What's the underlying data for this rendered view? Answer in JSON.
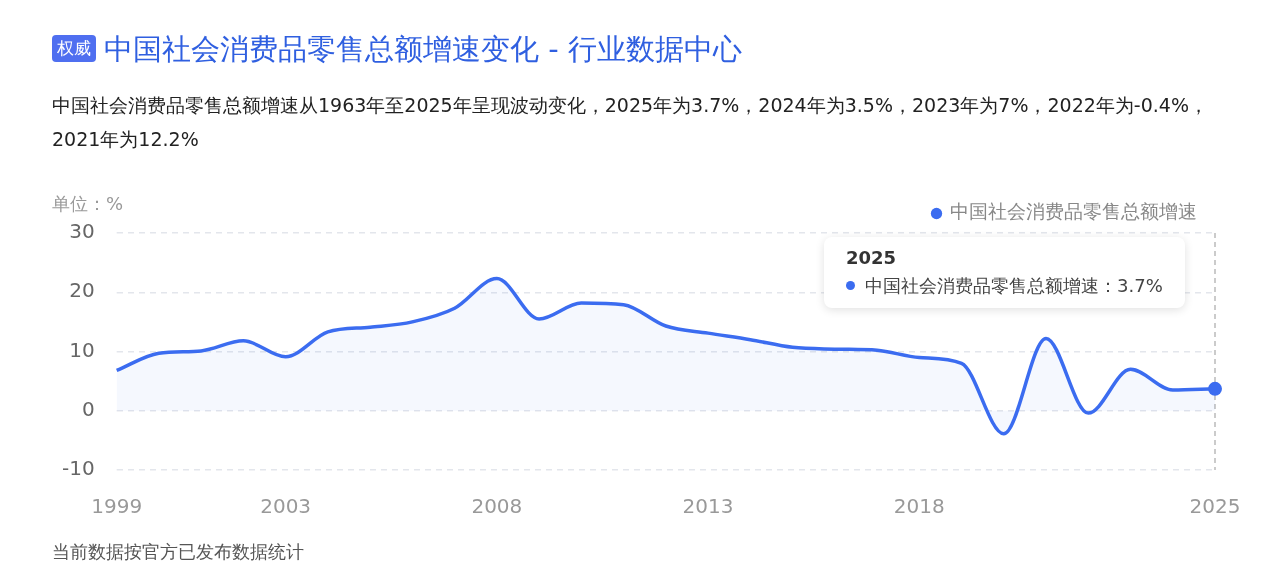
{
  "chart_data": {
    "type": "area",
    "title": "中国社会消费品零售总额增速变化 - 行业数据中心",
    "subtitle": "中国社会消费品零售总额增速从1963年至2025年呈现波动变化，2025年为3.7%，2024年为3.5%，2023年为7%，2022年为-0.4%，2021年为12.2%",
    "ylabel": "单位：%",
    "categories": [
      "1999",
      null,
      null,
      null,
      "2003",
      null,
      null,
      null,
      null,
      "2008",
      null,
      null,
      null,
      null,
      "2013",
      null,
      null,
      null,
      null,
      "2018",
      null,
      null,
      null,
      null,
      null,
      null,
      "2025"
    ],
    "series": [
      {
        "name": "中国社会消费品零售总额增速",
        "color": "#3b6cf0",
        "values": [
          6.8,
          9.7,
          10.1,
          11.8,
          9.1,
          13.3,
          14.1,
          15,
          17.3,
          22.3,
          15.5,
          18.2,
          17.9,
          14.3,
          13.1,
          12,
          10.7,
          10.4,
          10.2,
          9,
          8,
          -3.9,
          12.2,
          -0.4,
          7,
          3.5,
          3.7
        ]
      }
    ],
    "ylim": [
      -10,
      30
    ],
    "yticks": [
      -10,
      0,
      10,
      20,
      30
    ],
    "grid": "y",
    "legend": "top right",
    "marker": "none",
    "ref_lines": [
      {
        "axis": "x",
        "value": "2025"
      }
    ],
    "annotations": [
      "权威",
      "2025",
      "中国社会消费品零售总额增速：3.7%",
      "当前数据按官方已发布数据统计"
    ]
  }
}
